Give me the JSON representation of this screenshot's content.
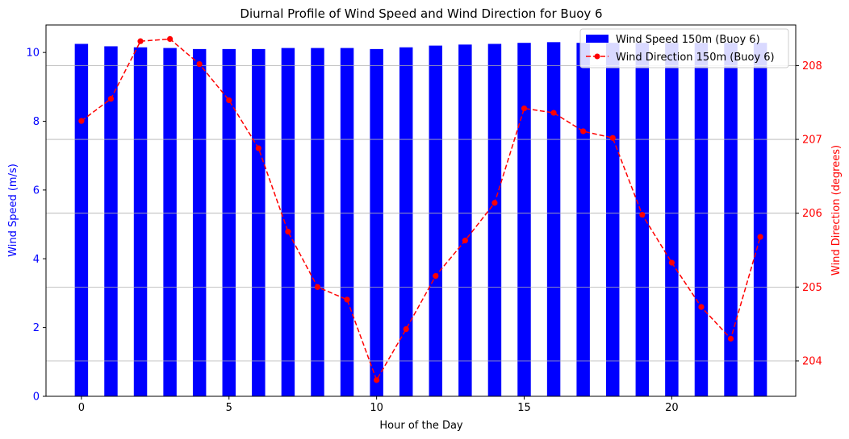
{
  "chart_data": {
    "type": "bar",
    "title": "Diurnal Profile of Wind Speed and Wind Direction for Buoy 6",
    "xlabel": "Hour of the Day",
    "ylabel_left": "Wind Speed (m/s)",
    "ylabel_right": "Wind Direction (degrees)",
    "x": [
      0,
      1,
      2,
      3,
      4,
      5,
      6,
      7,
      8,
      9,
      10,
      11,
      12,
      13,
      14,
      15,
      16,
      17,
      18,
      19,
      20,
      21,
      22,
      23
    ],
    "x_ticks": [
      0,
      5,
      10,
      15,
      20
    ],
    "xlim": [
      -1.2,
      24.2
    ],
    "ylim_left": [
      0,
      10.8
    ],
    "y_ticks_left": [
      0,
      2,
      4,
      6,
      8,
      10
    ],
    "ylim_right": [
      203.52,
      208.55
    ],
    "y_ticks_right": [
      204,
      205,
      206,
      207,
      208
    ],
    "grid": "horizontal (right axis)",
    "legend_position": "top-right",
    "colors": {
      "bar": "#0000ff",
      "line": "#ff0000",
      "left_axis": "#0000ff",
      "right_axis": "#ff0000"
    },
    "series": [
      {
        "name": "Wind Speed 150m (Buoy 6)",
        "type": "bar",
        "axis": "left",
        "values": [
          10.25,
          10.18,
          10.15,
          10.13,
          10.1,
          10.1,
          10.1,
          10.13,
          10.13,
          10.13,
          10.1,
          10.15,
          10.2,
          10.23,
          10.25,
          10.28,
          10.3,
          10.28,
          10.28,
          10.28,
          10.28,
          10.28,
          10.28,
          10.28
        ]
      },
      {
        "name": "Wind Direction 150m (Buoy 6)",
        "type": "line",
        "axis": "right",
        "line_style": "dashed",
        "marker": "circle",
        "values": [
          207.25,
          207.55,
          208.33,
          208.36,
          208.02,
          207.53,
          206.88,
          205.75,
          205.0,
          204.83,
          203.74,
          204.43,
          205.15,
          205.63,
          206.14,
          207.42,
          207.36,
          207.11,
          207.02,
          205.98,
          205.33,
          204.73,
          204.3,
          205.68
        ]
      }
    ]
  }
}
